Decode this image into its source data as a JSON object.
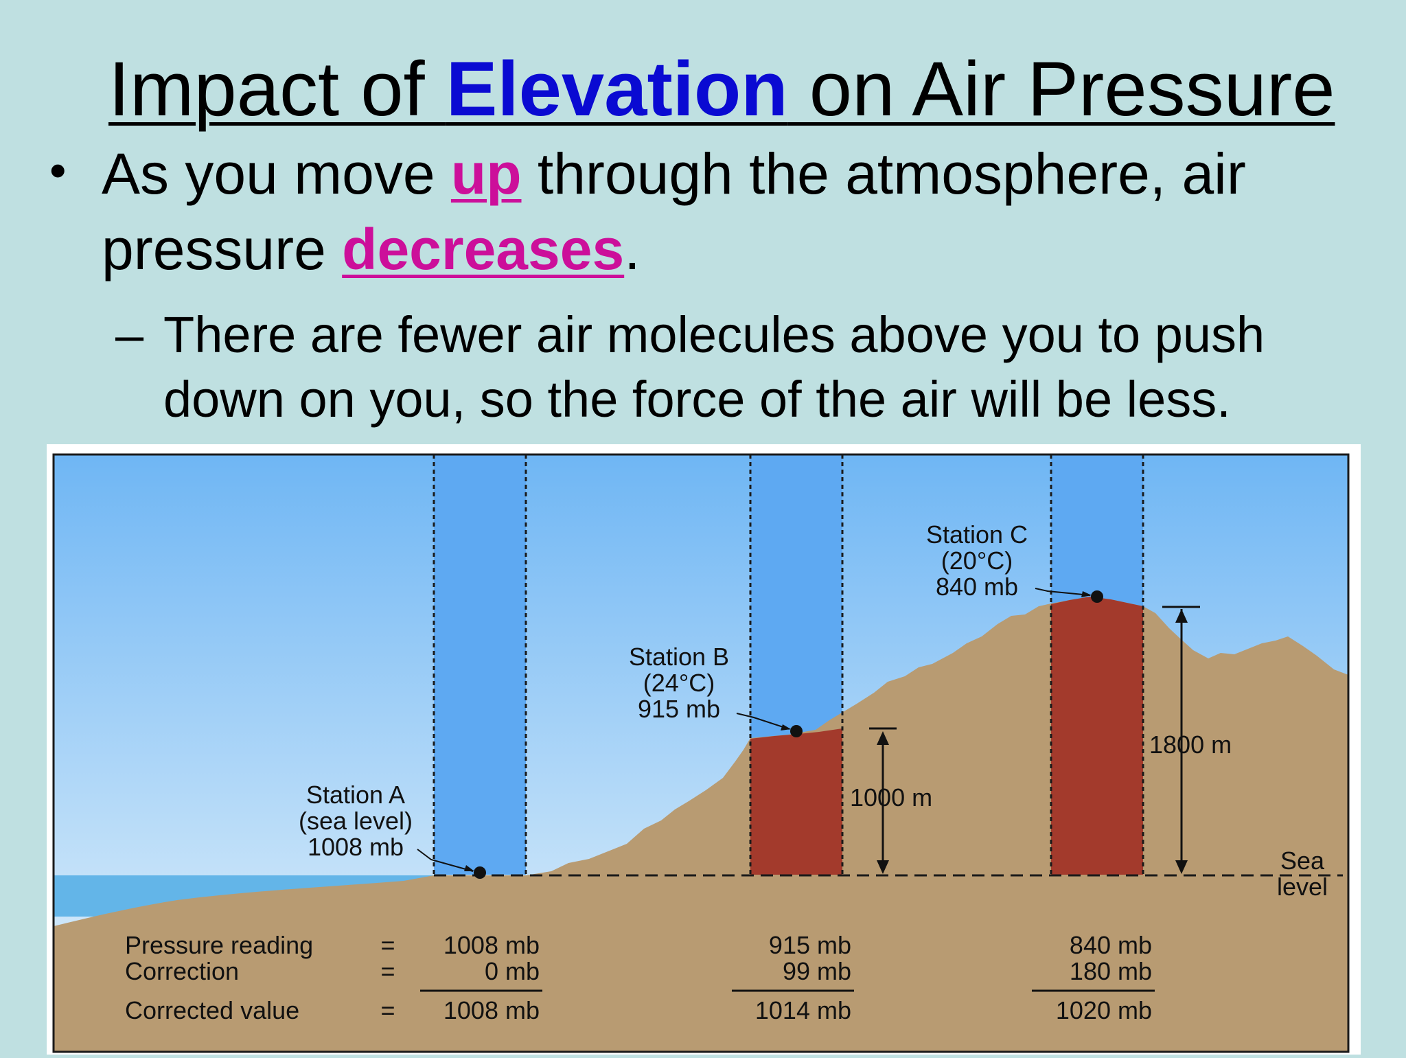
{
  "title": {
    "before": "Impact of ",
    "highlight": "Elevation",
    "after": " on Air Pressure"
  },
  "bullet": {
    "text1": "As you move ",
    "word1": "up",
    "text2": " through the atmosphere, air",
    "text3": "pressure ",
    "word2": "decreases",
    "text4": "."
  },
  "sub_bullet": {
    "dash": "–",
    "line1": "There are fewer air molecules above you to push",
    "line2": "down on you, so the force of the air will be less."
  },
  "diagram": {
    "station_a": {
      "name": "Station A",
      "detail": "(sea level)",
      "pressure": "1008 mb"
    },
    "station_b": {
      "name": "Station B",
      "detail": "(24°C)",
      "pressure": "915 mb"
    },
    "station_c": {
      "name": "Station C",
      "detail": "(20°C)",
      "pressure": "840 mb"
    },
    "height_b": "1000 m",
    "height_c": "1800 m",
    "sea_level": {
      "line1": "Sea",
      "line2": "level"
    },
    "table": {
      "labels": {
        "reading": "Pressure reading",
        "correction": "Correction",
        "corrected": "Corrected value",
        "equals": "="
      },
      "a": {
        "reading": "1008 mb",
        "correction": "0 mb",
        "corrected": "1008 mb"
      },
      "b": {
        "reading": "915 mb",
        "correction": "99 mb",
        "corrected": "1014 mb"
      },
      "c": {
        "reading": "840 mb",
        "correction": "180 mb",
        "corrected": "1020 mb"
      }
    },
    "colors": {
      "sky_top": "#6fb6f4",
      "sky_bottom": "#e6f3fb",
      "column": "#5ea9f2",
      "ground": "#b89b72",
      "rock_column": "#a33a2c",
      "sea": "#63b5e8"
    }
  }
}
